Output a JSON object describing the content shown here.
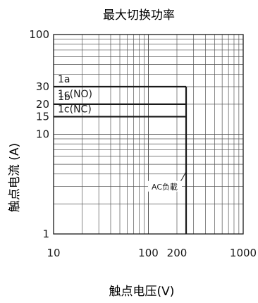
{
  "chart_data": {
    "type": "line",
    "title": "最大切换功率",
    "xlabel": "触点电压(V)",
    "ylabel": "触点电流 (A)",
    "x_scale": "log",
    "y_scale": "log",
    "xlim": [
      10,
      1000
    ],
    "ylim": [
      1,
      100
    ],
    "x_ticks": [
      {
        "value": 10,
        "label": "10"
      },
      {
        "value": 100,
        "label": "100"
      },
      {
        "value": 200,
        "label": "200"
      },
      {
        "value": 1000,
        "label": "1000"
      }
    ],
    "y_ticks": [
      {
        "value": 1,
        "label": "1"
      },
      {
        "value": 10,
        "label": "10"
      },
      {
        "value": 15,
        "label": "15"
      },
      {
        "value": 20,
        "label": "20"
      },
      {
        "value": 30,
        "label": "30"
      },
      {
        "value": 100,
        "label": "100"
      }
    ],
    "grid": true,
    "series": [
      {
        "name": "1a",
        "current": 30,
        "voltage_max": 250
      },
      {
        "name": "1c(NO)",
        "current": 30,
        "voltage_max": 250
      },
      {
        "name": "1b",
        "current": 20,
        "voltage_max": 250
      },
      {
        "name": "1c(NC)",
        "current": 15,
        "voltage_max": 250
      }
    ],
    "boundary_lines": [
      {
        "type": "vertical",
        "voltage": 250,
        "current_from": 1,
        "current_to": 30
      },
      {
        "type": "horizontal",
        "current": 30,
        "voltage_from": 10,
        "voltage_to": 250
      },
      {
        "type": "horizontal",
        "current": 20,
        "voltage_from": 10,
        "voltage_to": 250
      },
      {
        "type": "horizontal",
        "current": 15,
        "voltage_from": 10,
        "voltage_to": 250
      }
    ],
    "annotations": [
      {
        "text": "AC负載",
        "points_to_voltage": 250,
        "points_to_current": 4.2
      }
    ],
    "colors": {
      "line": "#1a1a1a",
      "grid": "#555555",
      "text": "#1a1a1a"
    }
  }
}
